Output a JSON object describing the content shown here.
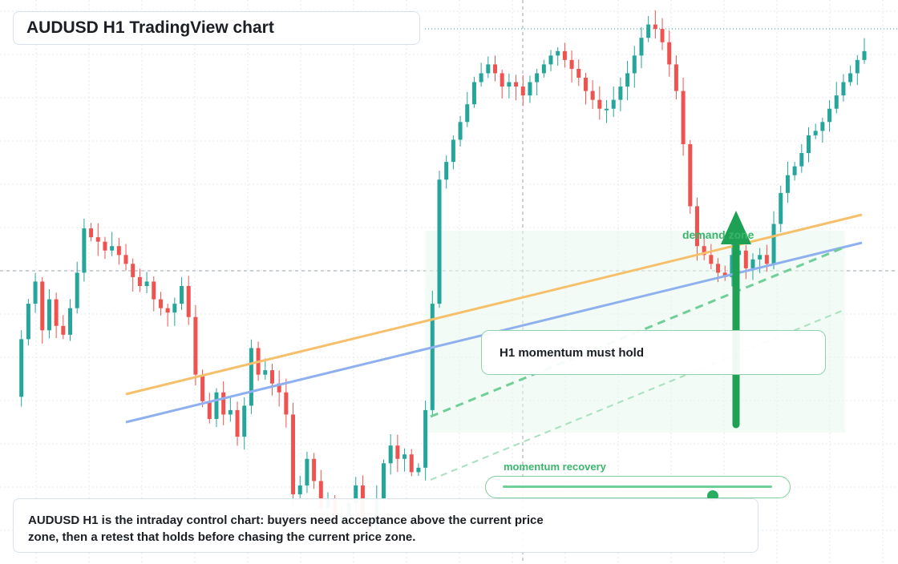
{
  "title": "AUDUSD H1 TradingView chart",
  "momentum_note": "H1 momentum must hold",
  "demand_label": "demand zone",
  "recovery": {
    "label": "momentum recovery",
    "level": 0.78
  },
  "caption": "AUDUSD H1 is the intraday control chart: buyers need acceptance above the current price zone, then a retest that holds before chasing the current price zone.",
  "colors": {
    "up": "#26a69a",
    "down": "#ef5350",
    "orange_line": "#f6c06b",
    "blue_line": "#8fb0ee",
    "green_accent": "#27ae60"
  },
  "chart_data": {
    "type": "candlestick",
    "symbol": "AUDUSD",
    "timeframe": "H1",
    "grid": true,
    "price_scale": "relative",
    "closes": [
      0.47,
      0.6,
      0.68,
      0.73,
      0.62,
      0.69,
      0.63,
      0.61,
      0.67,
      0.75,
      0.85,
      0.83,
      0.82,
      0.8,
      0.81,
      0.79,
      0.77,
      0.74,
      0.72,
      0.73,
      0.69,
      0.67,
      0.66,
      0.68,
      0.72,
      0.65,
      0.52,
      0.46,
      0.42,
      0.48,
      0.43,
      0.44,
      0.38,
      0.45,
      0.58,
      0.52,
      0.53,
      0.5,
      0.48,
      0.43,
      0.25,
      0.27,
      0.33,
      0.28,
      0.22,
      0.24,
      0.19,
      0.2,
      0.23,
      0.27,
      0.18,
      0.17,
      0.24,
      0.32,
      0.36,
      0.33,
      0.34,
      0.3,
      0.31,
      0.44,
      0.68,
      0.96,
      1.0,
      1.05,
      1.09,
      1.13,
      1.18,
      1.2,
      1.22,
      1.2,
      1.17,
      1.18,
      1.17,
      1.15,
      1.18,
      1.2,
      1.22,
      1.24,
      1.25,
      1.23,
      1.21,
      1.19,
      1.16,
      1.14,
      1.12,
      1.12,
      1.14,
      1.17,
      1.2,
      1.24,
      1.28,
      1.31,
      1.3,
      1.27,
      1.22,
      1.16,
      1.04,
      0.9,
      0.81,
      0.79,
      0.77,
      0.75,
      0.74,
      0.79,
      0.8,
      0.76,
      0.78,
      0.79,
      0.77,
      0.86,
      0.93,
      0.97,
      0.99,
      1.02,
      1.06,
      1.07,
      1.09,
      1.12,
      1.15,
      1.18,
      1.2,
      1.23,
      1.25
    ]
  }
}
